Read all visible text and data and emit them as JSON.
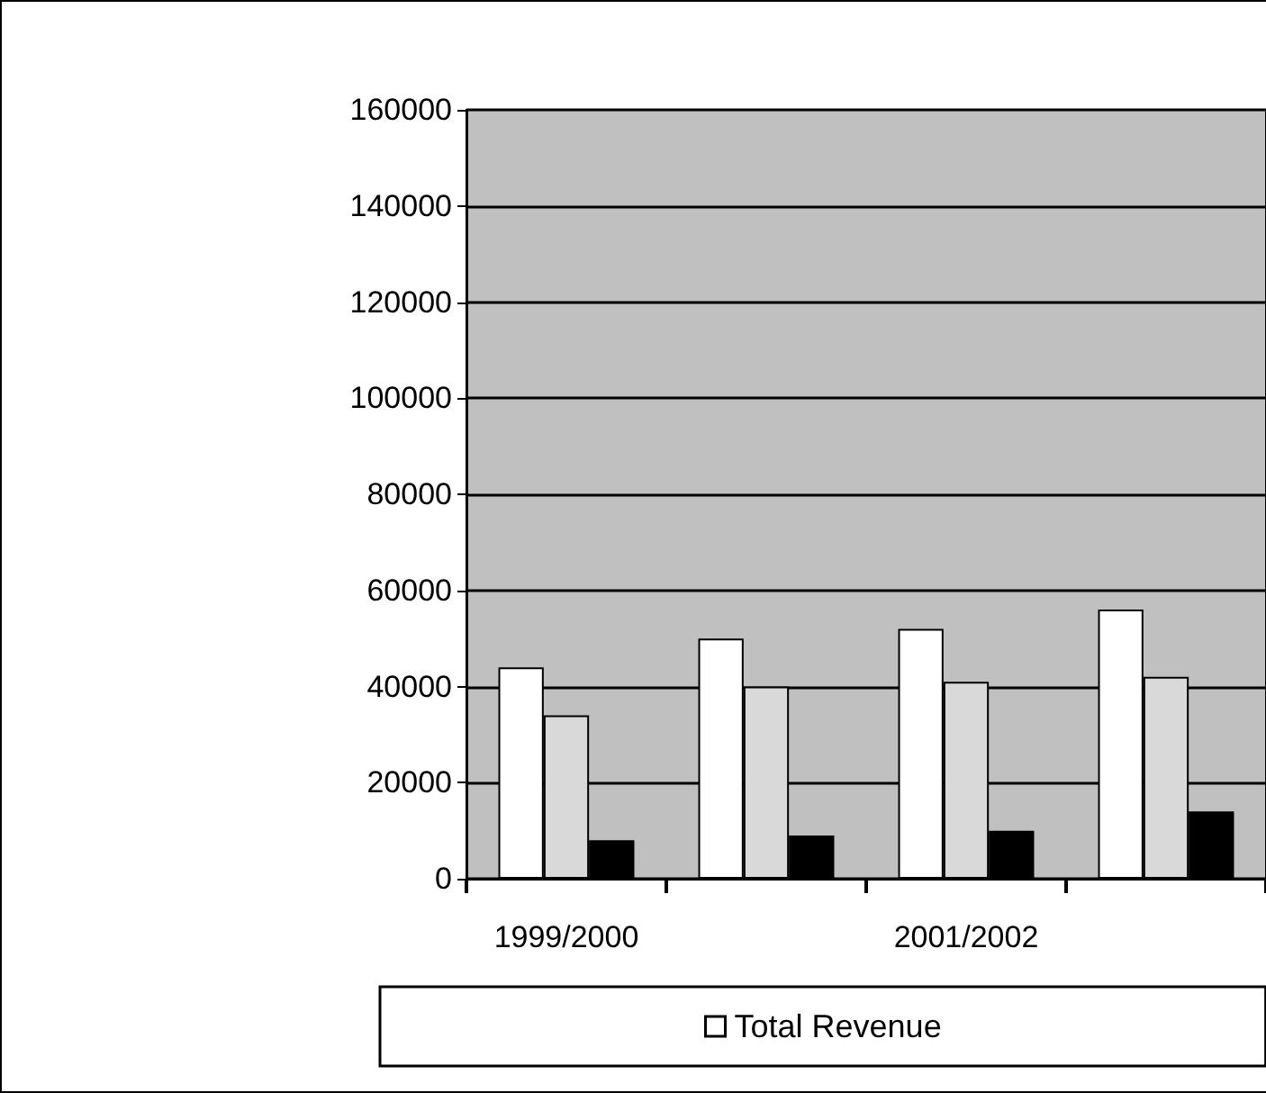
{
  "chart_data": {
    "type": "bar",
    "categories": [
      "1999/2000",
      null,
      "2001/2002",
      null
    ],
    "series": [
      {
        "name": "Total Revenue",
        "color": "#ffffff",
        "values": [
          44000,
          50000,
          52000,
          56000
        ]
      },
      {
        "color": "#d9d9d9",
        "values": [
          34000,
          40000,
          41000,
          42000
        ]
      },
      {
        "color": "#000000",
        "values": [
          8000,
          9000,
          10000,
          14000
        ]
      }
    ],
    "ylim": [
      0,
      160000
    ],
    "yticks": [
      0,
      20000,
      40000,
      60000,
      80000,
      100000,
      120000,
      140000,
      160000
    ],
    "grid": "y",
    "legend": "bottom"
  }
}
